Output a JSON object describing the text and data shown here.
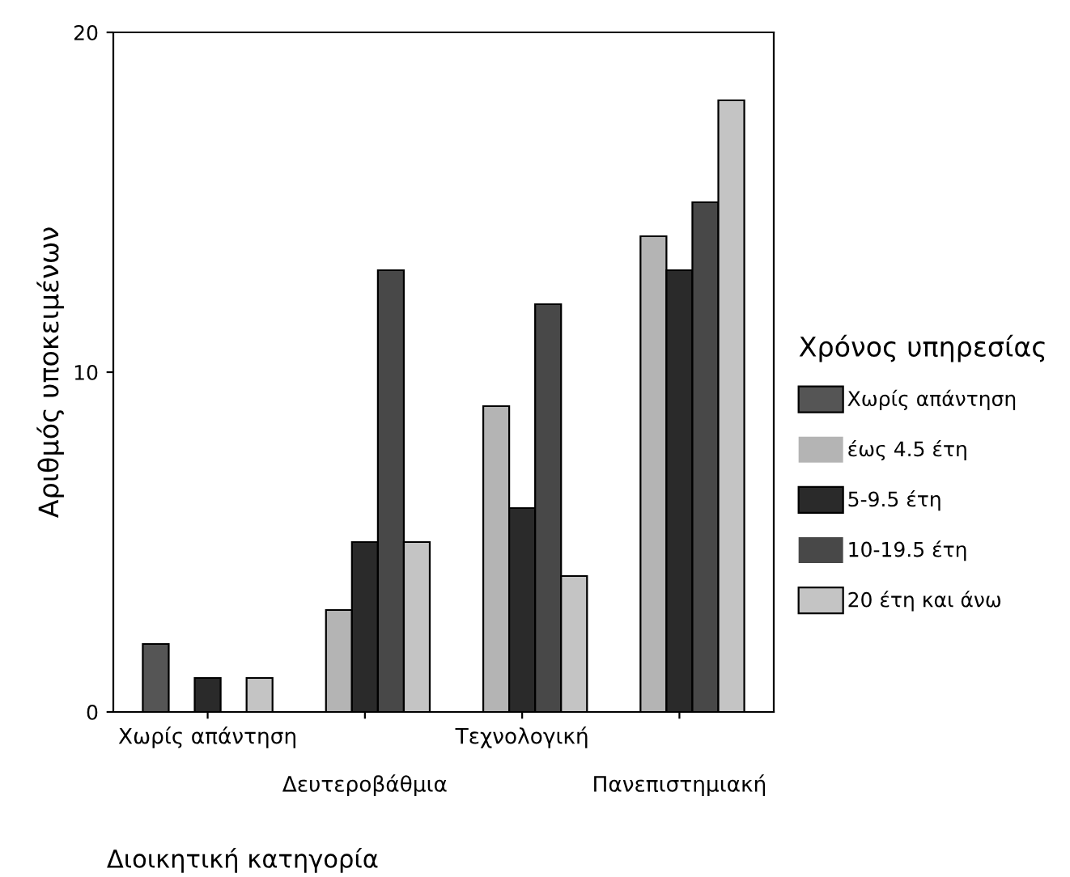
{
  "chart_data": {
    "type": "bar",
    "xlabel": "Διοικητική κατηγορία",
    "ylabel": "Αριθμός υποκειμένων",
    "legend_title": "Χρόνος υπηρεσίας",
    "categories": [
      "Χωρίς απάντηση",
      "Δευτεροβάθμια",
      "Τεχνολογική",
      "Πανεπιστημιακή"
    ],
    "series": [
      {
        "name": "Χωρίς απάντηση",
        "color": "#555555",
        "values": [
          2,
          0,
          0,
          0
        ]
      },
      {
        "name": "έως 4.5 έτη",
        "color": "#b4b4b4",
        "values": [
          0,
          3,
          9,
          14
        ]
      },
      {
        "name": "5-9.5 έτη",
        "color": "#2a2a2a",
        "values": [
          1,
          5,
          6,
          13
        ]
      },
      {
        "name": "10-19.5 έτη",
        "color": "#484848",
        "values": [
          0,
          13,
          12,
          15
        ]
      },
      {
        "name": "20 έτη και άνω",
        "color": "#c4c4c4",
        "values": [
          1,
          5,
          4,
          18
        ]
      }
    ],
    "ylim": [
      0,
      20
    ],
    "yticks": [
      0,
      10,
      20
    ],
    "grid": false,
    "legend": "right"
  }
}
